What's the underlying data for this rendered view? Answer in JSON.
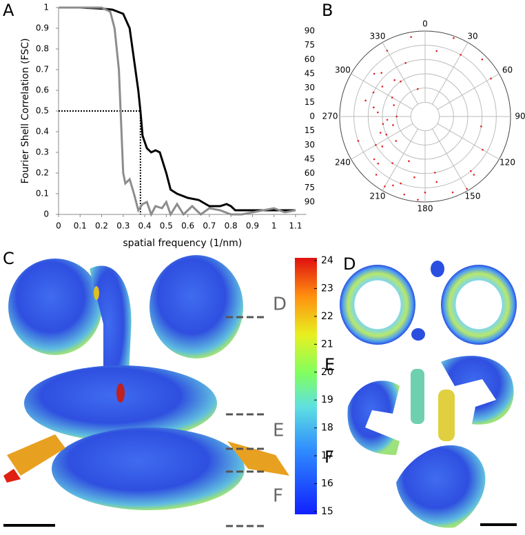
{
  "chart_data": [
    {
      "type": "line",
      "panel": "A",
      "xlabel": "spatial frequency (1/nm)",
      "ylabel": "Fourier Shell Correlation (FSC)",
      "xlim": [
        0,
        1.15
      ],
      "ylim": [
        0,
        1
      ],
      "xticks": [
        0,
        0.1,
        0.2,
        0.3,
        0.4,
        0.5,
        0.6,
        0.7,
        0.8,
        0.9,
        1,
        1.1
      ],
      "yticks": [
        0,
        0.1,
        0.2,
        0.3,
        0.4,
        0.5,
        0.6,
        0.7,
        0.8,
        0.9,
        1
      ],
      "reference": {
        "x": 0.38,
        "y": 0.5
      },
      "series": [
        {
          "color": "#000000",
          "x": [
            0,
            0.1,
            0.2,
            0.25,
            0.3,
            0.33,
            0.35,
            0.37,
            0.38,
            0.39,
            0.41,
            0.43,
            0.45,
            0.47,
            0.5,
            0.52,
            0.55,
            0.6,
            0.65,
            0.7,
            0.75,
            0.78,
            0.8,
            0.82,
            0.9,
            1.0,
            1.1
          ],
          "values": [
            1,
            1,
            0.995,
            0.99,
            0.97,
            0.9,
            0.75,
            0.6,
            0.5,
            0.38,
            0.32,
            0.3,
            0.31,
            0.3,
            0.2,
            0.12,
            0.1,
            0.08,
            0.07,
            0.04,
            0.04,
            0.05,
            0.04,
            0.02,
            0.02,
            0.02,
            0.02
          ]
        },
        {
          "color": "#8c8c8c",
          "x": [
            0,
            0.2,
            0.24,
            0.26,
            0.28,
            0.29,
            0.3,
            0.31,
            0.33,
            0.35,
            0.37,
            0.39,
            0.41,
            0.43,
            0.45,
            0.48,
            0.5,
            0.52,
            0.55,
            0.58,
            0.62,
            0.66,
            0.7,
            0.75,
            0.8,
            0.85,
            0.9,
            0.95,
            1.0,
            1.05,
            1.1
          ],
          "values": [
            1,
            1,
            0.98,
            0.9,
            0.7,
            0.45,
            0.2,
            0.15,
            0.17,
            0.1,
            0.02,
            0.05,
            0.06,
            0,
            0.04,
            0.03,
            0.06,
            0,
            0.05,
            0,
            0.04,
            0,
            0.03,
            0.02,
            0,
            0,
            0.01,
            0.02,
            0.03,
            0.01,
            0.02
          ]
        }
      ]
    },
    {
      "type": "polar-scatter",
      "panel": "B",
      "color": "#e02020",
      "rlim": [
        0,
        90
      ],
      "rticks": [
        0,
        15,
        30,
        45,
        60,
        75,
        90
      ],
      "thetaticks": [
        0,
        30,
        60,
        90,
        120,
        150,
        180,
        210,
        240,
        270,
        300,
        330
      ],
      "theta": [
        340,
        320,
        300,
        290,
        280,
        270,
        260,
        250,
        240,
        230,
        220,
        210,
        200,
        190,
        180,
        170,
        160,
        150,
        140,
        120,
        100,
        60,
        30,
        10,
        350,
        330,
        310,
        295,
        285,
        275,
        265,
        255,
        245,
        235,
        225,
        215,
        205,
        195,
        185,
        345,
        325,
        305,
        315,
        250,
        230,
        20,
        45,
        200,
        170,
        140
      ],
      "r": [
        60,
        50,
        40,
        35,
        55,
        30,
        45,
        50,
        60,
        70,
        80,
        85,
        75,
        65,
        80,
        70,
        85,
        88,
        75,
        70,
        60,
        80,
        75,
        70,
        85,
        80,
        70,
        60,
        65,
        50,
        40,
        35,
        45,
        55,
        70,
        60,
        80,
        85,
        88,
        30,
        45,
        55,
        65,
        75,
        40,
        88,
        85,
        50,
        60,
        80
      ]
    },
    {
      "type": "colorbar",
      "panel": "C",
      "zlim": [
        15,
        24
      ],
      "zticks": [
        15,
        16,
        17,
        18,
        19,
        20,
        21,
        22,
        23,
        24
      ]
    }
  ],
  "panels": {
    "slice_labels": [
      "D",
      "E",
      "F"
    ],
    "section_labels": [
      "D",
      "E",
      "F"
    ]
  }
}
